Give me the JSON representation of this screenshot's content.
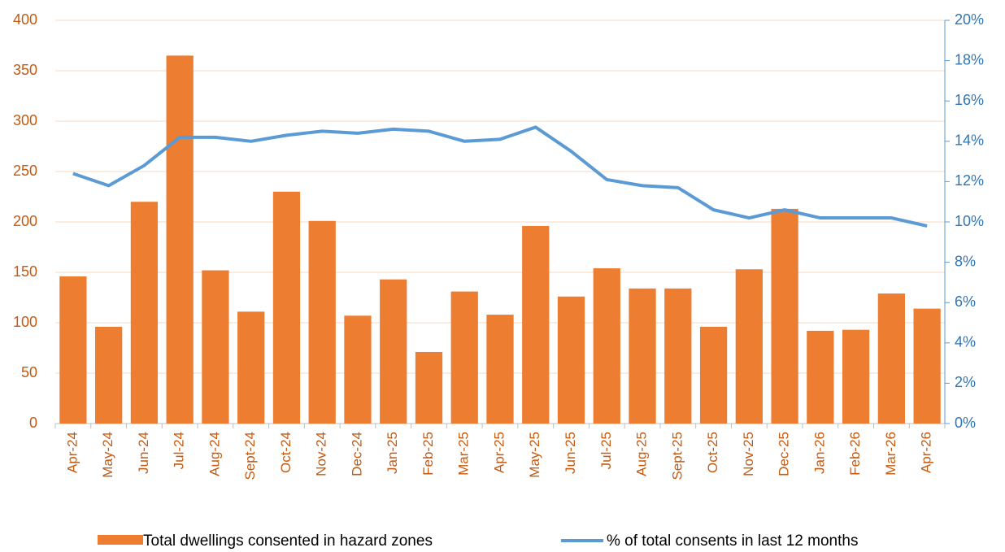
{
  "chart_data": {
    "type": "bar_line",
    "categories": [
      "Apr-24",
      "May-24",
      "Jun-24",
      "Jul-24",
      "Aug-24",
      "Sept-24",
      "Oct-24",
      "Nov-24",
      "Dec-24",
      "Jan-25",
      "Feb-25",
      "Mar-25",
      "Apr-25",
      "May-25",
      "Jun-25",
      "Jul-25",
      "Aug-25",
      "Sept-25",
      "Oct-25",
      "Nov-25",
      "Dec-25",
      "Jan-26",
      "Feb-26",
      "Mar-26",
      "Apr-26"
    ],
    "series": [
      {
        "name": "Total dwellings consented in hazard zones",
        "type": "bar",
        "color": "#ed7d31",
        "values": [
          146,
          96,
          220,
          365,
          152,
          111,
          230,
          201,
          107,
          143,
          71,
          131,
          108,
          196,
          126,
          154,
          134,
          134,
          96,
          153,
          213,
          92,
          93,
          129,
          114
        ]
      },
      {
        "name": "% of total consents in last 12 months",
        "type": "line",
        "axis": "y2",
        "color": "#5b9bd5",
        "values": [
          12.4,
          11.8,
          12.8,
          14.2,
          14.2,
          14.0,
          14.3,
          14.5,
          14.4,
          14.6,
          14.5,
          14.0,
          14.1,
          14.7,
          13.5,
          12.1,
          11.8,
          11.7,
          10.6,
          10.2,
          10.6,
          10.2,
          10.2,
          10.2,
          9.8
        ]
      }
    ],
    "ylim": [
      0,
      400
    ],
    "yticks": [
      0,
      50,
      100,
      150,
      200,
      250,
      300,
      350,
      400
    ],
    "y2lim": [
      0,
      20
    ],
    "y2ticks": [
      {
        "value": 0,
        "label": "0%"
      },
      {
        "value": 2,
        "label": "2%"
      },
      {
        "value": 4,
        "label": "4%"
      },
      {
        "value": 6,
        "label": "6%"
      },
      {
        "value": 8,
        "label": "8%"
      },
      {
        "value": 10,
        "label": "10%"
      },
      {
        "value": 12,
        "label": "12%"
      },
      {
        "value": 14,
        "label": "14%"
      },
      {
        "value": 16,
        "label": "16%"
      },
      {
        "value": 18,
        "label": "18%"
      },
      {
        "value": 20,
        "label": "20%"
      }
    ],
    "grid": true,
    "legend": "bottom"
  }
}
